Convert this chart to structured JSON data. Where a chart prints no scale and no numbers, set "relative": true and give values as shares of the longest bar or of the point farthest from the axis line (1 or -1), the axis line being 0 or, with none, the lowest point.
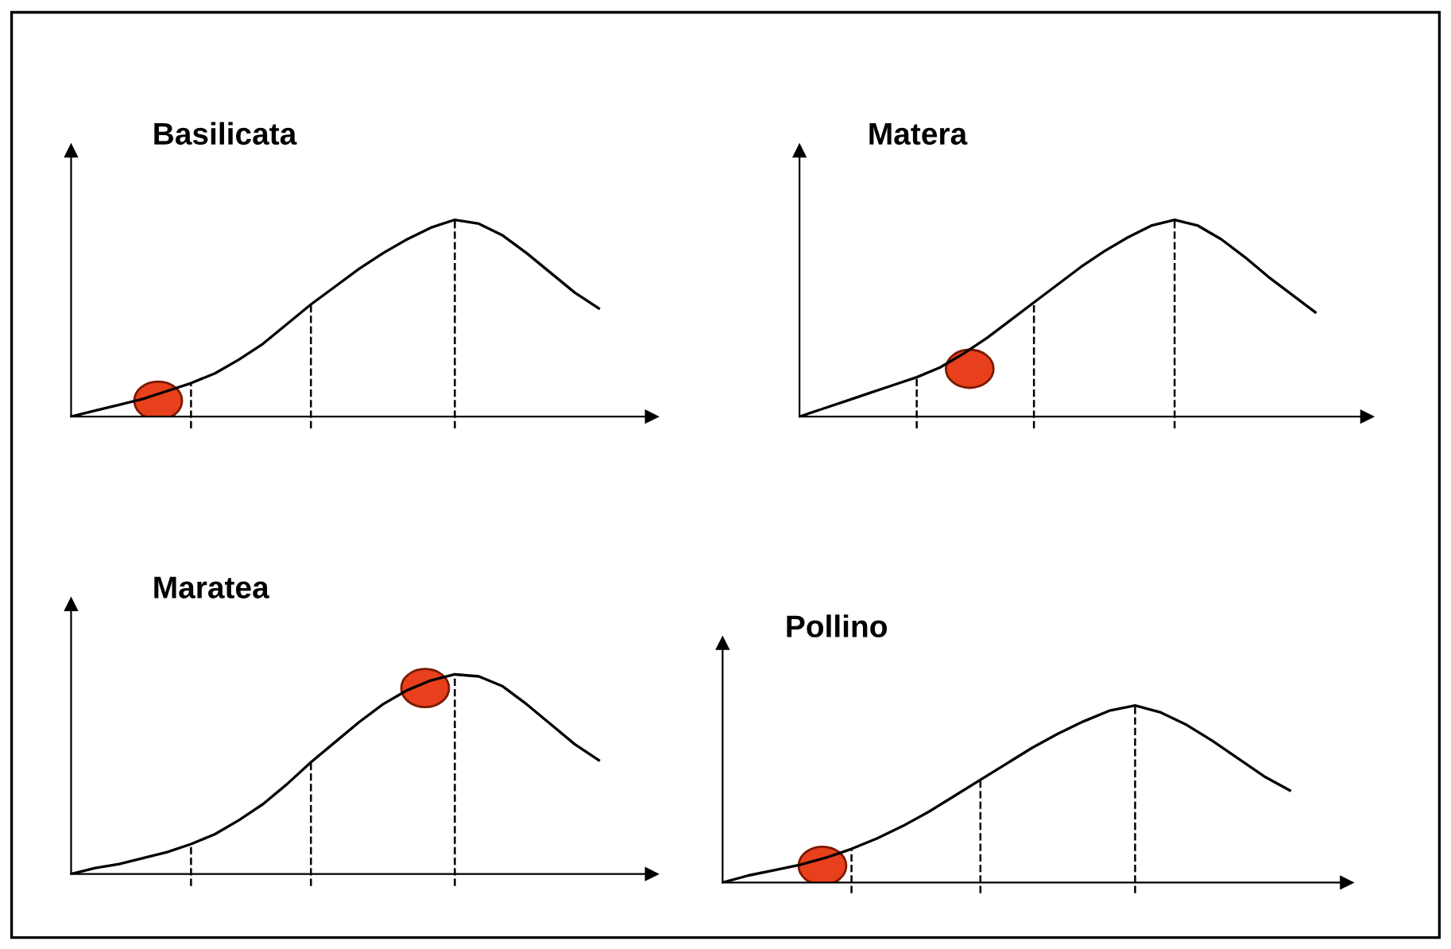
{
  "chart_data": [
    {
      "type": "line",
      "title": "Basilicata",
      "relative": true,
      "categories": [
        null,
        null,
        null,
        null,
        null,
        null,
        null,
        null,
        null,
        null,
        null,
        null,
        null,
        null,
        null,
        null,
        null,
        null,
        null,
        null,
        null,
        null,
        null
      ],
      "grid": false,
      "legend": false,
      "marker": "none",
      "line_style": "solid",
      "series": [
        {
          "color": "#000000",
          "values": [
            0,
            0.03,
            0.06,
            0.09,
            0.13,
            0.17,
            0.22,
            0.29,
            0.37,
            0.47,
            0.57,
            0.66,
            0.75,
            0.83,
            0.9,
            0.96,
            1.0,
            0.98,
            0.92,
            0.83,
            0.73,
            0.63,
            0.55
          ]
        }
      ]
    },
    {
      "type": "line",
      "title": "Matera",
      "relative": true,
      "categories": [
        null,
        null,
        null,
        null,
        null,
        null,
        null,
        null,
        null,
        null,
        null,
        null,
        null,
        null,
        null,
        null,
        null,
        null,
        null,
        null,
        null,
        null,
        null
      ],
      "grid": false,
      "legend": false,
      "marker": "none",
      "line_style": "solid",
      "series": [
        {
          "color": "#000000",
          "values": [
            0,
            0.04,
            0.08,
            0.12,
            0.16,
            0.2,
            0.25,
            0.32,
            0.4,
            0.49,
            0.58,
            0.67,
            0.76,
            0.84,
            0.91,
            0.97,
            1.0,
            0.97,
            0.9,
            0.81,
            0.71,
            0.62,
            0.53
          ]
        }
      ]
    },
    {
      "type": "line",
      "title": "Maratea",
      "relative": true,
      "categories": [
        null,
        null,
        null,
        null,
        null,
        null,
        null,
        null,
        null,
        null,
        null,
        null,
        null,
        null,
        null,
        null,
        null,
        null,
        null,
        null,
        null,
        null,
        null
      ],
      "grid": false,
      "legend": false,
      "marker": "none",
      "line_style": "solid",
      "series": [
        {
          "color": "#000000",
          "values": [
            0,
            0.03,
            0.05,
            0.08,
            0.11,
            0.15,
            0.2,
            0.27,
            0.35,
            0.45,
            0.56,
            0.66,
            0.76,
            0.85,
            0.92,
            0.97,
            1.0,
            0.99,
            0.94,
            0.85,
            0.75,
            0.65,
            0.57
          ]
        }
      ]
    },
    {
      "type": "line",
      "title": "Pollino",
      "relative": true,
      "categories": [
        null,
        null,
        null,
        null,
        null,
        null,
        null,
        null,
        null,
        null,
        null,
        null,
        null,
        null,
        null,
        null,
        null,
        null,
        null,
        null,
        null,
        null,
        null
      ],
      "grid": false,
      "legend": false,
      "marker": "none",
      "line_style": "solid",
      "series": [
        {
          "color": "#000000",
          "values": [
            0,
            0.04,
            0.07,
            0.1,
            0.14,
            0.19,
            0.25,
            0.32,
            0.4,
            0.49,
            0.58,
            0.67,
            0.76,
            0.84,
            0.91,
            0.97,
            1.0,
            0.96,
            0.89,
            0.8,
            0.7,
            0.6,
            0.52
          ]
        }
      ]
    }
  ]
}
